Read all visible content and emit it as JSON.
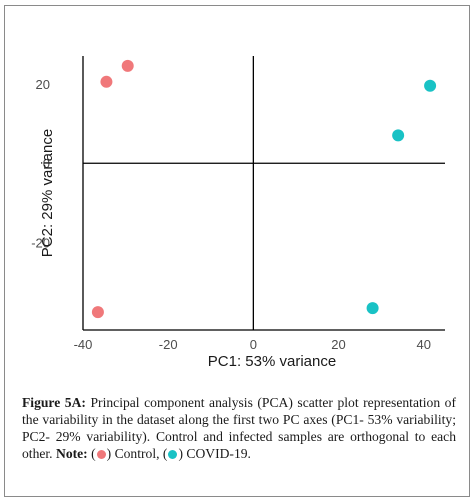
{
  "chart_data": {
    "type": "scatter",
    "xlabel": "PC1: 53% variance",
    "ylabel": "PC2: 29% variance",
    "xlim": [
      -40,
      45
    ],
    "ylim": [
      -42,
      27
    ],
    "xticks": [
      -40,
      -20,
      0,
      20,
      40
    ],
    "yticks": [
      20,
      0,
      -20
    ],
    "grid": false,
    "zero_lines": true,
    "series": [
      {
        "color": "#f0787a",
        "points": [
          {
            "x": -34.5,
            "y": 20.5
          },
          {
            "x": -29.5,
            "y": 24.5
          },
          {
            "x": -36.5,
            "y": -37.5
          }
        ]
      },
      {
        "color": "#19c2c5",
        "points": [
          {
            "x": 41.5,
            "y": 19.5
          },
          {
            "x": 34,
            "y": 7
          },
          {
            "x": 28,
            "y": -36.5
          }
        ]
      }
    ]
  },
  "caption": {
    "fig_label": "Figure 5A:",
    "text": "Principal component analysis (PCA) scatter plot representation of the variability in the dataset along the first two PC axes (PC1- 53% variability; PC2- 29% variability). Control and infected samples are orthogonal to each other.",
    "note_label": "Note:",
    "open_paren_1": "(",
    "legend_1": ") Control,",
    "open_paren_2": "(",
    "legend_2": ") COVID-19."
  }
}
